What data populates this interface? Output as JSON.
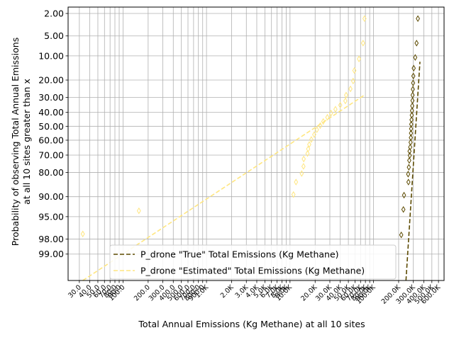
{
  "chart_data": {
    "type": "scatter",
    "title": "",
    "xlabel": "Total Annual Emissions (Kg Methane) at all 10 sites",
    "ylabel_lines": [
      "Probability of observing Total Annual Emissions",
      "at all 10 sites greater than x"
    ],
    "x_scale": "log",
    "y_scale": "probability (normal quantile), inverted",
    "xlim": [
      22,
      700000
    ],
    "ylim_exceedance_percent": [
      99.75,
      1.5
    ],
    "grid": true,
    "legend_position": "lower-center",
    "yticks": [
      {
        "value": 2,
        "label": "2.00"
      },
      {
        "value": 5,
        "label": "5.00"
      },
      {
        "value": 10,
        "label": "10.00"
      },
      {
        "value": 20,
        "label": "20.00"
      },
      {
        "value": 30,
        "label": "30.00"
      },
      {
        "value": 40,
        "label": "40.00"
      },
      {
        "value": 50,
        "label": "50.00"
      },
      {
        "value": 60,
        "label": "60.00"
      },
      {
        "value": 70,
        "label": "70.00"
      },
      {
        "value": 80,
        "label": "80.00"
      },
      {
        "value": 90,
        "label": "90.00"
      },
      {
        "value": 95,
        "label": "95.00"
      },
      {
        "value": 98,
        "label": "98.00"
      },
      {
        "value": 99,
        "label": "99.00"
      }
    ],
    "xticks": [
      {
        "value": 30,
        "label": "30.0"
      },
      {
        "value": 40,
        "label": "40.0"
      },
      {
        "value": 50,
        "label": "50.0"
      },
      {
        "value": 60,
        "label": "60.0"
      },
      {
        "value": 70,
        "label": "70.0"
      },
      {
        "value": 80,
        "label": "80.0"
      },
      {
        "value": 90,
        "label": "90.0"
      },
      {
        "value": 100,
        "label": "100.0"
      },
      {
        "value": 200,
        "label": "200.0"
      },
      {
        "value": 300,
        "label": "300.0"
      },
      {
        "value": 400,
        "label": "400.0"
      },
      {
        "value": 500,
        "label": "500.0"
      },
      {
        "value": 600,
        "label": "600.0"
      },
      {
        "value": 700,
        "label": "700.0"
      },
      {
        "value": 800,
        "label": "800.0"
      },
      {
        "value": 900,
        "label": "900.0"
      },
      {
        "value": 1000,
        "label": "1.0K"
      },
      {
        "value": 2000,
        "label": "2.0K"
      },
      {
        "value": 3000,
        "label": "3.0K"
      },
      {
        "value": 4000,
        "label": "4.0K"
      },
      {
        "value": 5000,
        "label": "5.0K"
      },
      {
        "value": 6000,
        "label": "6.0K"
      },
      {
        "value": 7000,
        "label": "7.0K"
      },
      {
        "value": 8000,
        "label": "8.0K"
      },
      {
        "value": 9000,
        "label": "9.0K"
      },
      {
        "value": 10000,
        "label": "10.0K"
      },
      {
        "value": 20000,
        "label": "20.0K"
      },
      {
        "value": 30000,
        "label": "30.0K"
      },
      {
        "value": 40000,
        "label": "40.0K"
      },
      {
        "value": 50000,
        "label": "50.0K"
      },
      {
        "value": 60000,
        "label": "60.0K"
      },
      {
        "value": 70000,
        "label": "70.0K"
      },
      {
        "value": 80000,
        "label": "80.0K"
      },
      {
        "value": 90000,
        "label": "90.0K"
      },
      {
        "value": 100000,
        "label": "100.0K"
      },
      {
        "value": 200000,
        "label": "200.0K"
      },
      {
        "value": 300000,
        "label": "300.0K"
      },
      {
        "value": 400000,
        "label": "400.0K"
      },
      {
        "value": 500000,
        "label": "500.0K"
      },
      {
        "value": 600000,
        "label": "600.0K"
      }
    ],
    "series": [
      {
        "name": "P_drone \"True\" Total Emissions (Kg Methane)",
        "color": "#5c4a00",
        "style": "dashed-line",
        "line": [
          [
            245000,
            99.75
          ],
          [
            360000,
            12
          ]
        ],
        "points": [
          [
            215000,
            97.6
          ],
          [
            228000,
            93.5
          ],
          [
            232000,
            89.5
          ],
          [
            262000,
            84.5
          ],
          [
            260000,
            80.8
          ],
          [
            265000,
            77.2
          ],
          [
            268000,
            73.3
          ],
          [
            272000,
            70.2
          ],
          [
            270000,
            67.5
          ],
          [
            275000,
            64.8
          ],
          [
            278000,
            61.5
          ],
          [
            280000,
            58.2
          ],
          [
            281000,
            55.0
          ],
          [
            282000,
            51.8
          ],
          [
            283000,
            48.5
          ],
          [
            285000,
            45.3
          ],
          [
            287000,
            42.0
          ],
          [
            289000,
            38.8
          ],
          [
            291000,
            35.5
          ],
          [
            293000,
            32.0
          ],
          [
            294000,
            28.5
          ],
          [
            296000,
            25.0
          ],
          [
            298000,
            21.5
          ],
          [
            300000,
            18.0
          ],
          [
            303000,
            14.5
          ],
          [
            316000,
            10.5
          ],
          [
            328000,
            6.5
          ],
          [
            340000,
            2.5
          ]
        ]
      },
      {
        "name": "P_drone \"Estimated\" Total Emissions (Kg Methane)",
        "color": "#ffe680",
        "style": "dashed-line",
        "line": [
          [
            33,
            99.75
          ],
          [
            78000,
            28.5
          ]
        ],
        "points": [
          [
            33,
            97.5
          ],
          [
            155,
            93.8
          ],
          [
            11000,
            89.3
          ],
          [
            11800,
            84.5
          ],
          [
            13800,
            80.5
          ],
          [
            14500,
            76.7
          ],
          [
            14600,
            72.4
          ],
          [
            16200,
            69.0
          ],
          [
            16500,
            66.0
          ],
          [
            17000,
            63.0
          ],
          [
            18000,
            59.5
          ],
          [
            19500,
            56.0
          ],
          [
            21000,
            52.5
          ],
          [
            23000,
            49.5
          ],
          [
            25000,
            46.5
          ],
          [
            28000,
            43.5
          ],
          [
            31000,
            40.5
          ],
          [
            35000,
            37.8
          ],
          [
            40000,
            35.0
          ],
          [
            46000,
            32.2
          ],
          [
            47000,
            28.5
          ],
          [
            53000,
            24.8
          ],
          [
            57000,
            20.5
          ],
          [
            59000,
            15.5
          ],
          [
            67000,
            11.0
          ],
          [
            75000,
            6.5
          ],
          [
            78000,
            2.5
          ]
        ]
      }
    ]
  }
}
